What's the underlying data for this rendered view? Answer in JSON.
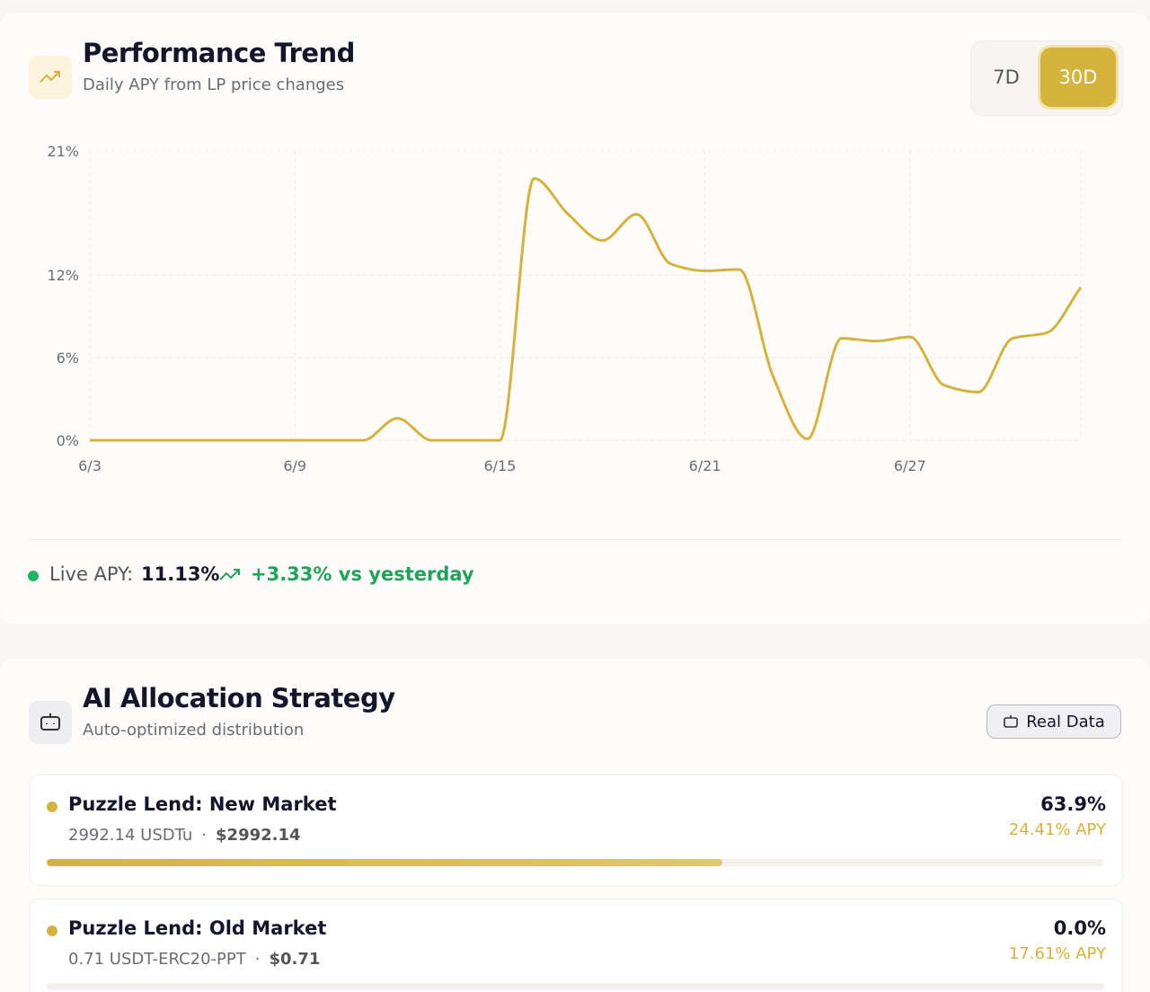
{
  "trend": {
    "title": "Performance Trend",
    "subtitle": "Daily APY from LP price changes",
    "ranges": [
      "7D",
      "30D"
    ],
    "active_range": 1,
    "chart_data": {
      "type": "line",
      "color": "#d4b33c",
      "grid": true,
      "categories": [
        "6/3",
        null,
        null,
        null,
        null,
        null,
        "6/9",
        null,
        null,
        null,
        null,
        null,
        "6/15",
        null,
        null,
        null,
        null,
        null,
        "6/21",
        null,
        null,
        null,
        null,
        null,
        "6/27",
        null,
        null,
        null,
        null,
        null
      ],
      "series": [
        {
          "name": "APY",
          "color": "#d4b33c",
          "values": [
            0,
            0,
            0,
            0,
            0,
            0,
            0,
            0,
            0,
            1.6,
            0,
            0,
            0,
            19.0,
            16.4,
            14.5,
            16.4,
            12.8,
            12.3,
            12.4,
            4.6,
            0.1,
            7.4,
            7.2,
            7.5,
            4.0,
            3.5,
            7.4,
            7.8,
            11.1
          ]
        }
      ],
      "ylim": [
        0,
        21
      ],
      "yticks": [
        {
          "value": 0,
          "label": "0%"
        },
        {
          "value": 6,
          "label": "6%"
        },
        {
          "value": 12,
          "label": "12%"
        },
        {
          "value": 21,
          "label": "21%"
        }
      ]
    },
    "live_label": "Live APY:",
    "live_value": "11.13%",
    "change": "+3.33% vs yesterday"
  },
  "allocation": {
    "title": "AI Allocation Strategy",
    "subtitle": "Auto-optimized distribution",
    "badge": "Real Data",
    "items": [
      {
        "name": "Puzzle Lend: New Market",
        "amount": "2992.14 USDTu",
        "usd": "$2992.14",
        "share": {
          "value": 63.9,
          "label": "63.9%"
        },
        "apy": "24.41% APY"
      },
      {
        "name": "Puzzle Lend: Old Market",
        "amount": "0.71 USDT-ERC20-PPT",
        "usd": "$0.71",
        "share": {
          "value": 0.0,
          "label": "0.0%"
        },
        "apy": "17.61% APY"
      }
    ]
  }
}
